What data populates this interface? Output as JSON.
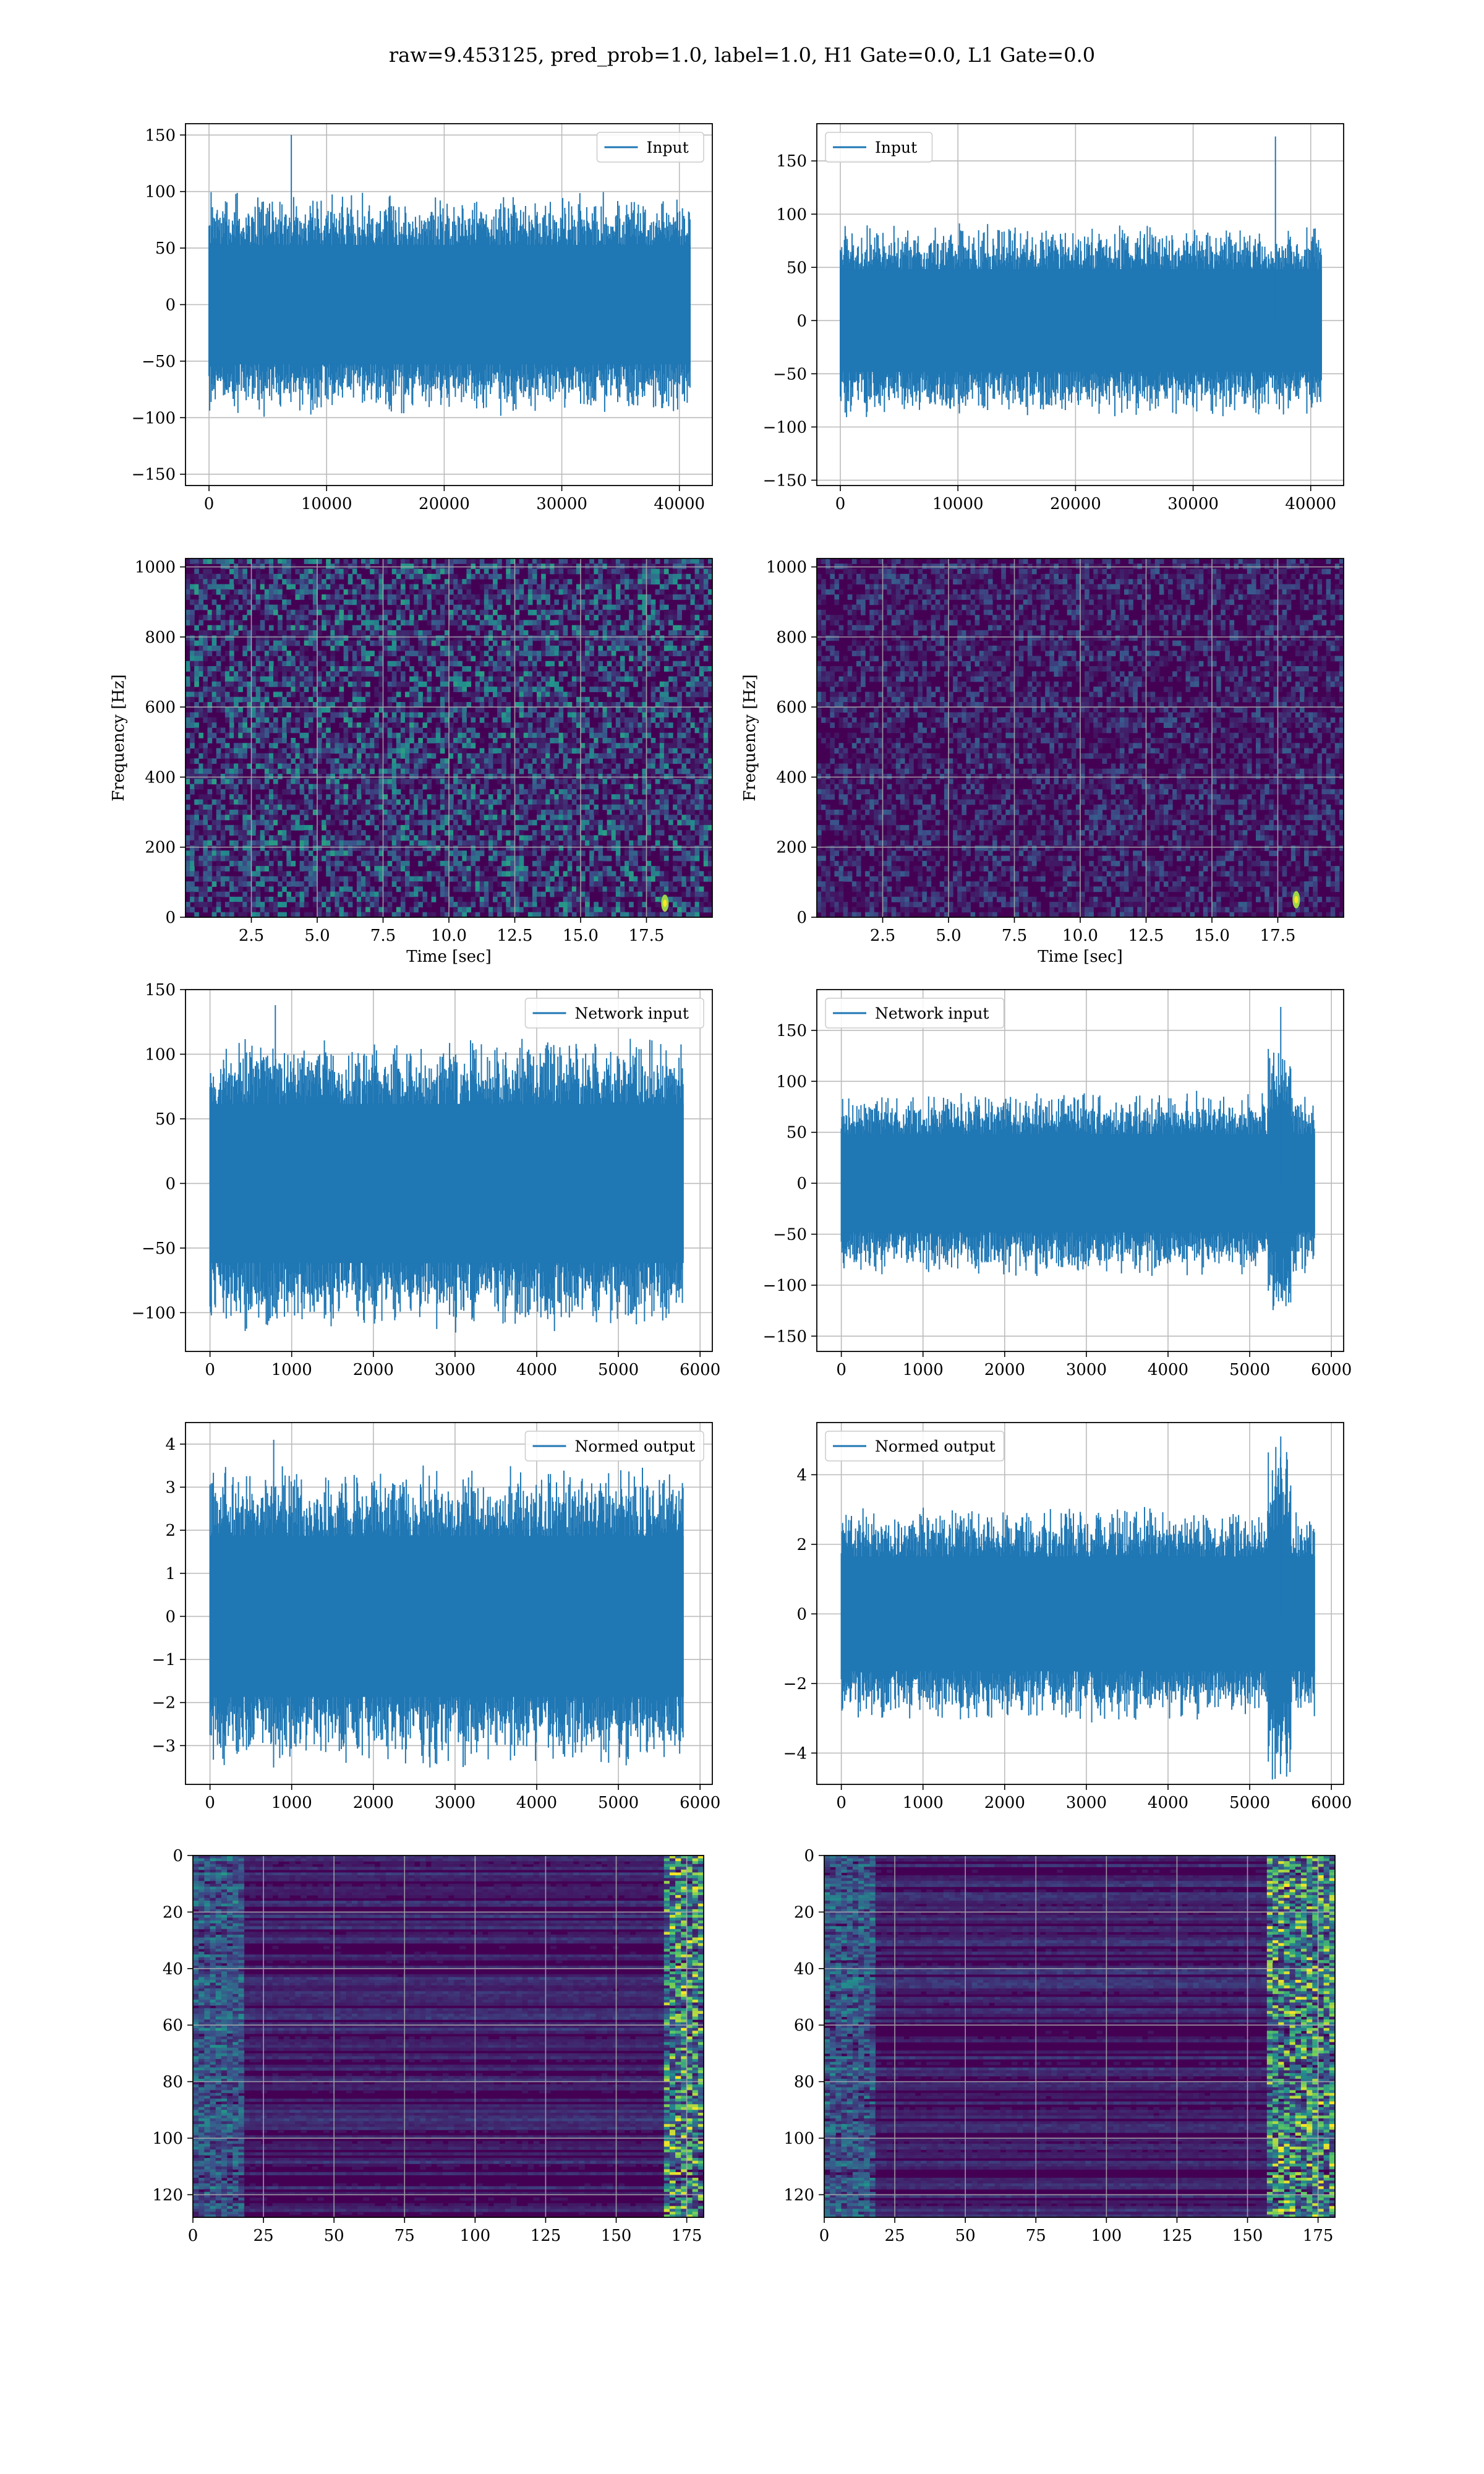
{
  "suptitle": "raw=9.453125, pred_prob=1.0, label=1.0, H1 Gate=0.0, L1 Gate=0.0",
  "colors": {
    "series": "#1f77b4",
    "grid": "#b0b0b0",
    "frame": "#000000"
  },
  "chart_data": [
    {
      "id": "r1-left",
      "type": "line",
      "title": "",
      "xlabel": "",
      "ylabel": "",
      "legend": "Input",
      "legend_loc": "upper right",
      "xlim": [
        -2000,
        42800
      ],
      "ylim": [
        -160,
        160
      ],
      "xticks": [
        0,
        10000,
        20000,
        30000,
        40000
      ],
      "yticks": [
        -150,
        -100,
        -50,
        0,
        50,
        100,
        150
      ],
      "xtick_labels": [
        "0",
        "10000",
        "20000",
        "30000",
        "40000"
      ],
      "ytick_labels": [
        "−150",
        "−100",
        "−50",
        "0",
        "50",
        "100",
        "150"
      ],
      "signal": {
        "n": 40960,
        "std": 24,
        "peak": 150,
        "peak_x": 7000
      }
    },
    {
      "id": "r1-right",
      "type": "line",
      "title": "",
      "xlabel": "",
      "ylabel": "",
      "legend": "Input",
      "legend_loc": "upper left",
      "xlim": [
        -2000,
        42800
      ],
      "ylim": [
        -155,
        185
      ],
      "xticks": [
        0,
        10000,
        20000,
        30000,
        40000
      ],
      "yticks": [
        -150,
        -100,
        -50,
        0,
        50,
        100,
        150
      ],
      "xtick_labels": [
        "0",
        "10000",
        "20000",
        "30000",
        "40000"
      ],
      "ytick_labels": [
        "−150",
        "−100",
        "−50",
        "0",
        "50",
        "100",
        "150"
      ],
      "signal": {
        "n": 40960,
        "std": 22,
        "peak": 173,
        "peak_x": 37000
      }
    },
    {
      "id": "r2-left",
      "type": "heatmap",
      "title": "",
      "xlabel": "Time [sec]",
      "ylabel": "Frequency [Hz]",
      "xlim": [
        0,
        20
      ],
      "ylim": [
        0,
        1024
      ],
      "xticks": [
        2.5,
        5.0,
        7.5,
        10.0,
        12.5,
        15.0,
        17.5
      ],
      "yticks": [
        0,
        200,
        400,
        600,
        800,
        1000
      ],
      "xtick_labels": [
        "2.5",
        "5.0",
        "7.5",
        "10.0",
        "12.5",
        "15.0",
        "17.5"
      ],
      "ytick_labels": [
        "0",
        "200",
        "400",
        "600",
        "800",
        "1000"
      ],
      "spectrogram": {
        "intensity": 0.55,
        "hot_spot_time": 18.2,
        "hot_spot_freq": 40
      }
    },
    {
      "id": "r2-right",
      "type": "heatmap",
      "title": "",
      "xlabel": "Time [sec]",
      "ylabel": "Frequency [Hz]",
      "xlim": [
        0,
        20
      ],
      "ylim": [
        0,
        1024
      ],
      "xticks": [
        2.5,
        5.0,
        7.5,
        10.0,
        12.5,
        15.0,
        17.5
      ],
      "yticks": [
        0,
        200,
        400,
        600,
        800,
        1000
      ],
      "xtick_labels": [
        "2.5",
        "5.0",
        "7.5",
        "10.0",
        "12.5",
        "15.0",
        "17.5"
      ],
      "ytick_labels": [
        "0",
        "200",
        "400",
        "600",
        "800",
        "1000"
      ],
      "spectrogram": {
        "intensity": 0.3,
        "hot_spot_time": 18.2,
        "hot_spot_freq": 50
      }
    },
    {
      "id": "r3-left",
      "type": "line",
      "title": "",
      "xlabel": "",
      "ylabel": "",
      "legend": "Network input",
      "legend_loc": "upper right",
      "xlim": [
        -300,
        6150
      ],
      "ylim": [
        -130,
        150
      ],
      "xticks": [
        0,
        1000,
        2000,
        3000,
        4000,
        5000,
        6000
      ],
      "yticks": [
        -100,
        -50,
        0,
        50,
        100,
        150
      ],
      "xtick_labels": [
        "0",
        "1000",
        "2000",
        "3000",
        "4000",
        "5000",
        "6000"
      ],
      "ytick_labels": [
        "−100",
        "−50",
        "0",
        "50",
        "100",
        "150"
      ],
      "signal": {
        "n": 5800,
        "std": 28,
        "peak": 138,
        "peak_x": 800
      }
    },
    {
      "id": "r3-right",
      "type": "line",
      "title": "",
      "xlabel": "",
      "ylabel": "",
      "legend": "Network input",
      "legend_loc": "upper left",
      "xlim": [
        -300,
        6150
      ],
      "ylim": [
        -165,
        190
      ],
      "xticks": [
        0,
        1000,
        2000,
        3000,
        4000,
        5000,
        6000
      ],
      "yticks": [
        -150,
        -100,
        -50,
        0,
        50,
        100,
        150
      ],
      "xtick_labels": [
        "0",
        "1000",
        "2000",
        "3000",
        "4000",
        "5000",
        "6000"
      ],
      "ytick_labels": [
        "−150",
        "−100",
        "−50",
        "0",
        "50",
        "100",
        "150"
      ],
      "signal": {
        "n": 5800,
        "std": 22,
        "peak": 173,
        "peak_x": 5380
      }
    },
    {
      "id": "r4-left",
      "type": "line",
      "title": "",
      "xlabel": "",
      "ylabel": "",
      "legend": "Normed output",
      "legend_loc": "upper right",
      "xlim": [
        -300,
        6150
      ],
      "ylim": [
        -3.9,
        4.5
      ],
      "xticks": [
        0,
        1000,
        2000,
        3000,
        4000,
        5000,
        6000
      ],
      "yticks": [
        -3,
        -2,
        -1,
        0,
        1,
        2,
        3,
        4
      ],
      "xtick_labels": [
        "0",
        "1000",
        "2000",
        "3000",
        "4000",
        "5000",
        "6000"
      ],
      "ytick_labels": [
        "−3",
        "−2",
        "−1",
        "0",
        "1",
        "2",
        "3",
        "4"
      ],
      "signal": {
        "n": 5800,
        "std": 0.85,
        "peak": 4.1,
        "peak_x": 780
      }
    },
    {
      "id": "r4-right",
      "type": "line",
      "title": "",
      "xlabel": "",
      "ylabel": "",
      "legend": "Normed output",
      "legend_loc": "upper left",
      "xlim": [
        -300,
        6150
      ],
      "ylim": [
        -4.9,
        5.5
      ],
      "xticks": [
        0,
        1000,
        2000,
        3000,
        4000,
        5000,
        6000
      ],
      "yticks": [
        -4,
        -2,
        0,
        2,
        4
      ],
      "xtick_labels": [
        "0",
        "1000",
        "2000",
        "3000",
        "4000",
        "5000",
        "6000"
      ],
      "ytick_labels": [
        "−4",
        "−2",
        "0",
        "2",
        "4"
      ],
      "signal": {
        "n": 5800,
        "std": 0.75,
        "peak": 5.1,
        "peak_x": 5380
      }
    },
    {
      "id": "r5-left",
      "type": "heatmap",
      "title": "",
      "xlabel": "",
      "ylabel": "",
      "xlim": [
        0,
        181
      ],
      "ylim": [
        128,
        0
      ],
      "xticks": [
        0,
        25,
        50,
        75,
        100,
        125,
        150,
        175
      ],
      "yticks": [
        0,
        20,
        40,
        60,
        80,
        100,
        120
      ],
      "xtick_labels": [
        "0",
        "25",
        "50",
        "75",
        "100",
        "125",
        "150",
        "175"
      ],
      "ytick_labels": [
        "0",
        "20",
        "40",
        "60",
        "80",
        "100",
        "120"
      ],
      "feature_map": {
        "rows": 128,
        "cols": 181,
        "active_start_col": 0,
        "hot_end_col": 165
      }
    },
    {
      "id": "r5-right",
      "type": "heatmap",
      "title": "",
      "xlabel": "",
      "ylabel": "",
      "xlim": [
        0,
        181
      ],
      "ylim": [
        128,
        0
      ],
      "xticks": [
        0,
        25,
        50,
        75,
        100,
        125,
        150,
        175
      ],
      "yticks": [
        0,
        20,
        40,
        60,
        80,
        100,
        120
      ],
      "xtick_labels": [
        "0",
        "25",
        "50",
        "75",
        "100",
        "125",
        "150",
        "175"
      ],
      "ytick_labels": [
        "0",
        "20",
        "40",
        "60",
        "80",
        "100",
        "120"
      ],
      "feature_map": {
        "rows": 128,
        "cols": 181,
        "active_start_col": 0,
        "hot_end_col": 155
      }
    }
  ]
}
